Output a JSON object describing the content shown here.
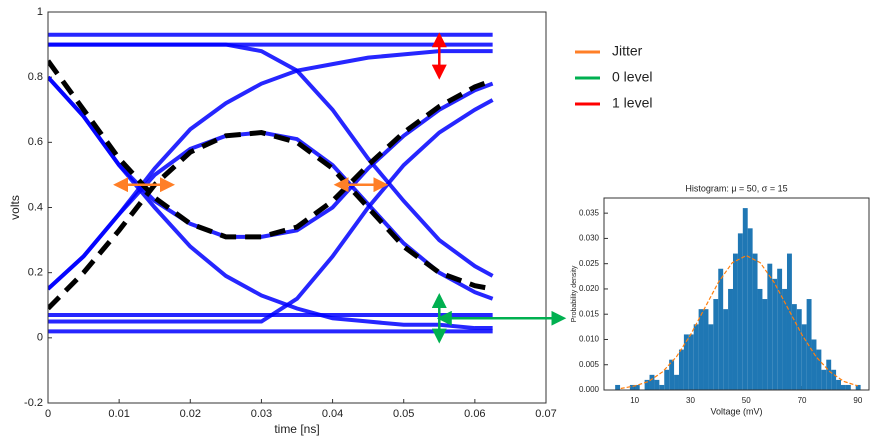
{
  "chart_data": [
    {
      "type": "line",
      "xlabel": "time [ns]",
      "ylabel": "volts",
      "xlim": [
        0,
        0.07
      ],
      "xticks": [
        0,
        0.01,
        0.02,
        0.03,
        0.04,
        0.05,
        0.06,
        0.07
      ],
      "ylim": [
        -0.2,
        1
      ],
      "yticks": [
        -0.2,
        0,
        0.2,
        0.4,
        0.6,
        0.8,
        1
      ],
      "grid": false,
      "x": [
        0,
        0.005,
        0.01,
        0.015,
        0.02,
        0.025,
        0.03,
        0.035,
        0.04,
        0.045,
        0.05,
        0.055,
        0.06,
        0.0625
      ],
      "series": [
        {
          "color": "#0000ff",
          "values": [
            0.15,
            0.25,
            0.38,
            0.52,
            0.64,
            0.72,
            0.78,
            0.82,
            0.84,
            0.86,
            0.87,
            0.88,
            0.88,
            0.88
          ]
        },
        {
          "color": "#0000ff",
          "values": [
            0.8,
            0.68,
            0.53,
            0.4,
            0.28,
            0.19,
            0.13,
            0.09,
            0.06,
            0.05,
            0.04,
            0.04,
            0.03,
            0.03
          ]
        },
        {
          "color": "#0000ff",
          "values": [
            0.15,
            0.25,
            0.38,
            0.5,
            0.58,
            0.62,
            0.63,
            0.61,
            0.53,
            0.41,
            0.29,
            0.2,
            0.14,
            0.12
          ]
        },
        {
          "color": "#0000ff",
          "values": [
            0.8,
            0.68,
            0.53,
            0.42,
            0.35,
            0.31,
            0.31,
            0.33,
            0.4,
            0.52,
            0.62,
            0.7,
            0.76,
            0.78
          ]
        },
        {
          "color": "#0000ff",
          "values": [
            0.02,
            0.02,
            0.02,
            0.02,
            0.02,
            0.02,
            0.02,
            0.02,
            0.02,
            0.02,
            0.02,
            0.02,
            0.02,
            0.02
          ]
        },
        {
          "color": "#0000ff",
          "values": [
            0.07,
            0.07,
            0.07,
            0.07,
            0.07,
            0.07,
            0.07,
            0.07,
            0.07,
            0.07,
            0.07,
            0.07,
            0.07,
            0.07
          ]
        },
        {
          "color": "#0000ff",
          "values": [
            0.9,
            0.9,
            0.9,
            0.9,
            0.9,
            0.9,
            0.9,
            0.9,
            0.9,
            0.9,
            0.9,
            0.9,
            0.9,
            0.9
          ]
        },
        {
          "color": "#0000ff",
          "values": [
            0.93,
            0.93,
            0.93,
            0.93,
            0.93,
            0.93,
            0.93,
            0.93,
            0.93,
            0.93,
            0.93,
            0.93,
            0.93,
            0.93
          ]
        },
        {
          "color": "#0000ff",
          "values": [
            0.9,
            0.9,
            0.9,
            0.9,
            0.9,
            0.9,
            0.88,
            0.82,
            0.7,
            0.55,
            0.42,
            0.3,
            0.22,
            0.19
          ]
        },
        {
          "color": "#0000ff",
          "values": [
            0.05,
            0.05,
            0.05,
            0.05,
            0.05,
            0.05,
            0.05,
            0.12,
            0.25,
            0.4,
            0.53,
            0.63,
            0.7,
            0.73
          ]
        },
        {
          "color": "#000000",
          "dashed": true,
          "values": [
            0.85,
            0.7,
            0.55,
            0.43,
            0.35,
            0.31,
            0.31,
            0.34,
            0.42,
            0.53,
            0.63,
            0.71,
            0.77,
            0.79
          ]
        },
        {
          "color": "#000000",
          "dashed": true,
          "values": [
            0.09,
            0.2,
            0.33,
            0.47,
            0.57,
            0.62,
            0.63,
            0.6,
            0.52,
            0.4,
            0.28,
            0.2,
            0.16,
            0.15
          ]
        }
      ],
      "annotations": [
        {
          "color": "#ff7f27",
          "x": [
            0.0095,
            0.0175
          ],
          "y": [
            0.47,
            0.47
          ]
        },
        {
          "color": "#ff7f27",
          "x": [
            0.0405,
            0.0475
          ],
          "y": [
            0.47,
            0.47
          ]
        },
        {
          "color": "#ff0000",
          "x": [
            0.055,
            0.055
          ],
          "y": [
            0.93,
            0.8
          ]
        },
        {
          "color": "#00b050",
          "x": [
            0.055,
            0.055
          ],
          "y": [
            0.13,
            -0.01
          ]
        },
        {
          "color": "#00b050",
          "x": [
            0.055,
            0.0725
          ],
          "y": [
            0.06,
            0.06
          ]
        }
      ],
      "legend": [
        {
          "label": "Jitter",
          "color": "#ff7f27"
        },
        {
          "label": "0 level",
          "color": "#00b050"
        },
        {
          "label": "1 level",
          "color": "#ff0000"
        }
      ]
    },
    {
      "type": "histogram",
      "title": "Histogram: μ = 50, σ = 15",
      "xlabel": "Voltage (mV)",
      "ylabel": "Probability density",
      "xlim": [
        -1,
        94
      ],
      "xticks": [
        10,
        30,
        50,
        70,
        90
      ],
      "ylim": [
        0,
        0.038
      ],
      "yticks": [
        {
          "value": 0,
          "label": "0.000"
        },
        {
          "value": 0.005,
          "label": "0.005"
        },
        {
          "value": 0.01,
          "label": "0.010"
        },
        {
          "value": 0.015,
          "label": "0.015"
        },
        {
          "value": 0.02,
          "label": "0.020"
        },
        {
          "value": 0.025,
          "label": "0.025"
        },
        {
          "value": 0.03,
          "label": "0.030"
        },
        {
          "value": 0.035,
          "label": "0.035"
        }
      ],
      "color": "#1f77b4",
      "bins": [
        3,
        4.76,
        6.52,
        8.28,
        10.04,
        11.8,
        13.56,
        15.32,
        17.08,
        18.84,
        20.6,
        22.36,
        24.12,
        25.88,
        27.64,
        29.4,
        31.16,
        32.92,
        34.68,
        36.44,
        38.2,
        39.96,
        41.72,
        43.48,
        45.24,
        47,
        48.76,
        50.52,
        52.28,
        54.04,
        55.8,
        57.56,
        59.32,
        61.08,
        62.84,
        64.6,
        66.36,
        68.12,
        69.88,
        71.64,
        73.4,
        75.16,
        76.92,
        78.68,
        80.44,
        82.2,
        83.96,
        85.72,
        87.48,
        89.24,
        91
      ],
      "values": [
        0.001,
        0,
        0,
        0.001,
        0.001,
        0,
        0.002,
        0.003,
        0.002,
        0.001,
        0.004,
        0.006,
        0.003,
        0.008,
        0.011,
        0.011,
        0.013,
        0.016,
        0.016,
        0.013,
        0.018,
        0.024,
        0.016,
        0.02,
        0.027,
        0.031,
        0.036,
        0.032,
        0.027,
        0.02,
        0.018,
        0.025,
        0.022,
        0.024,
        0.02,
        0.027,
        0.017,
        0.016,
        0.013,
        0.018,
        0.01,
        0.008,
        0.004,
        0.006,
        0.004,
        0.002,
        0.001,
        0.001,
        0,
        0.001
      ],
      "curve": {
        "color": "#ff7f0e",
        "x": [
          5,
          10,
          15,
          20,
          25,
          30,
          35,
          40,
          45,
          50,
          55,
          60,
          65,
          70,
          75,
          80,
          85,
          90
        ],
        "y": [
          0.0003,
          0.0008,
          0.0017,
          0.0036,
          0.0066,
          0.0109,
          0.0161,
          0.0213,
          0.0252,
          0.0266,
          0.0252,
          0.0213,
          0.0161,
          0.0109,
          0.0066,
          0.0036,
          0.0017,
          0.0008
        ]
      }
    }
  ]
}
